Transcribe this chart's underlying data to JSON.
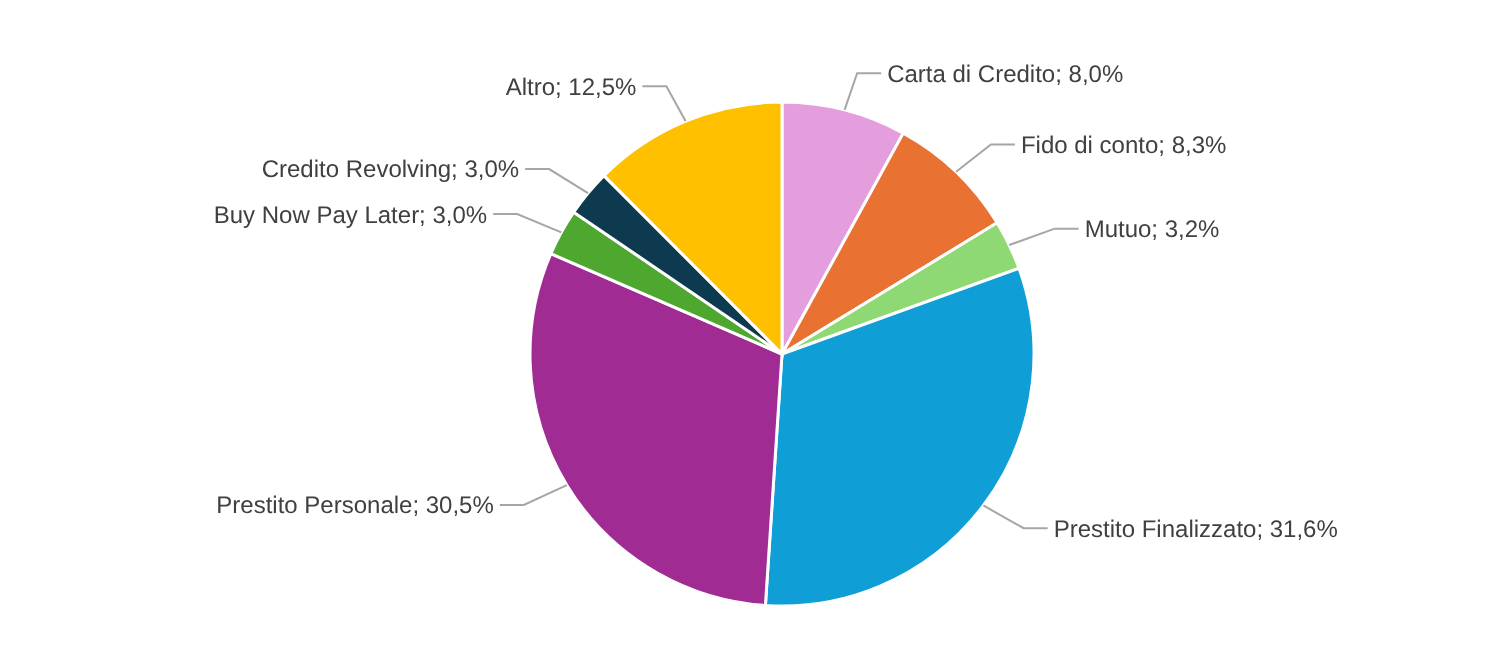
{
  "chart_data": {
    "type": "pie",
    "categories": [
      "Carta di Credito",
      "Fido di conto",
      "Mutuo",
      "Prestito Finalizzato",
      "Prestito Personale",
      "Buy Now Pay Later",
      "Credito Revolving",
      "Altro"
    ],
    "values": [
      8.0,
      8.3,
      3.2,
      31.6,
      30.5,
      3.0,
      3.0,
      12.5
    ],
    "value_labels": [
      "8,0%",
      "8,3%",
      "3,2%",
      "31,6%",
      "30,5%",
      "3,0%",
      "3,0%",
      "12,5%"
    ],
    "colors": [
      "#e49edd",
      "#e97132",
      "#8ed973",
      "#0f9ed5",
      "#a02b93",
      "#4ea72e",
      "#0e3a4f",
      "#ffc000"
    ]
  }
}
